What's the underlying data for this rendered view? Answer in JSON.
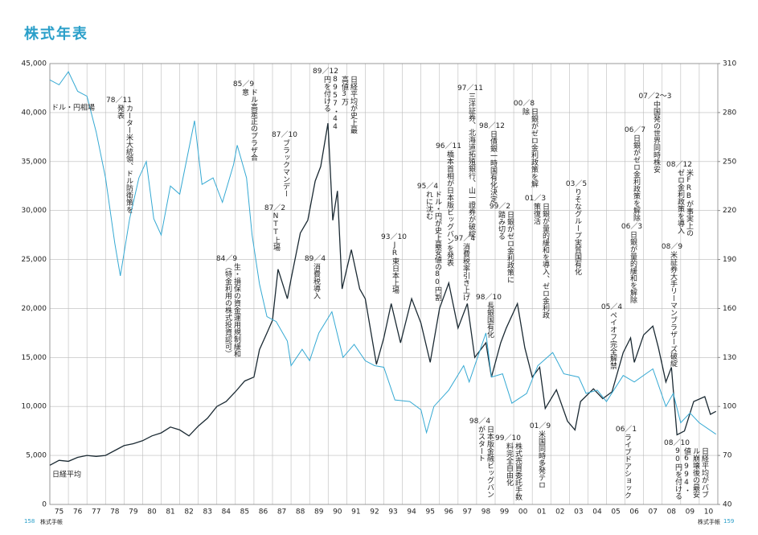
{
  "chart_data": {
    "type": "line",
    "title": "株式年表",
    "xlim": [
      1975,
      2011
    ],
    "xticks": [
      {
        "value": 1975,
        "label": "75"
      },
      {
        "value": 1976,
        "label": "76"
      },
      {
        "value": 1977,
        "label": "77"
      },
      {
        "value": 1978,
        "label": "78"
      },
      {
        "value": 1979,
        "label": "79"
      },
      {
        "value": 1980,
        "label": "80"
      },
      {
        "value": 1981,
        "label": "81"
      },
      {
        "value": 1982,
        "label": "82"
      },
      {
        "value": 1983,
        "label": "83"
      },
      {
        "value": 1984,
        "label": "84"
      },
      {
        "value": 1985,
        "label": "85"
      },
      {
        "value": 1986,
        "label": "86"
      },
      {
        "value": 1987,
        "label": "87"
      },
      {
        "value": 1988,
        "label": "88"
      },
      {
        "value": 1989,
        "label": "89"
      },
      {
        "value": 1990,
        "label": "90"
      },
      {
        "value": 1991,
        "label": "91"
      },
      {
        "value": 1992,
        "label": "92"
      },
      {
        "value": 1993,
        "label": "93"
      },
      {
        "value": 1994,
        "label": "94"
      },
      {
        "value": 1995,
        "label": "95"
      },
      {
        "value": 1996,
        "label": "96"
      },
      {
        "value": 1997,
        "label": "97"
      },
      {
        "value": 1998,
        "label": "98"
      },
      {
        "value": 1999,
        "label": "99"
      },
      {
        "value": 2000,
        "label": "00"
      },
      {
        "value": 2001,
        "label": "01"
      },
      {
        "value": 2002,
        "label": "02"
      },
      {
        "value": 2003,
        "label": "03"
      },
      {
        "value": 2004,
        "label": "04"
      },
      {
        "value": 2005,
        "label": "05"
      },
      {
        "value": 2006,
        "label": "06"
      },
      {
        "value": 2007,
        "label": "07"
      },
      {
        "value": 2008,
        "label": "08"
      },
      {
        "value": 2009,
        "label": "09"
      },
      {
        "value": 2010,
        "label": "10"
      }
    ],
    "ylim": [
      0,
      45000
    ],
    "yticks": [
      0,
      {
        "value": 5000,
        "label": "5,000"
      },
      {
        "value": 10000,
        "label": "10,000"
      },
      {
        "value": 15000,
        "label": "15,000"
      },
      {
        "value": 20000,
        "label": "20,000"
      },
      {
        "value": 25000,
        "label": "25,000"
      },
      {
        "value": 30000,
        "label": "30,000"
      },
      {
        "value": 35000,
        "label": "35,000"
      },
      {
        "value": 40000,
        "label": "40,000"
      },
      {
        "value": 45000,
        "label": "45,000"
      }
    ],
    "y2lim": [
      40,
      310
    ],
    "y2ticks": [
      40,
      70,
      100,
      130,
      160,
      190,
      220,
      250,
      280,
      310
    ],
    "grid": true,
    "series": [
      {
        "name": "日経平均",
        "color": "#1b2a33",
        "axis": "y",
        "x": [
          1975,
          1975.5,
          1976,
          1976.5,
          1977,
          1977.5,
          1978,
          1978.5,
          1979,
          1979.5,
          1980,
          1980.5,
          1981,
          1981.5,
          1982,
          1982.5,
          1983,
          1983.5,
          1984,
          1984.5,
          1985,
          1985.5,
          1986,
          1986.3,
          1986.7,
          1987,
          1987.3,
          1987.8,
          1988,
          1988.5,
          1988.9,
          1989.3,
          1989.6,
          1989.99,
          1990.25,
          1990.5,
          1990.75,
          1991,
          1991.25,
          1991.7,
          1992,
          1992.6,
          1993,
          1993.4,
          1993.9,
          1994.5,
          1995,
          1995.5,
          1996,
          1996.5,
          1997,
          1997.5,
          1997.9,
          1998.5,
          1998.8,
          1999.3,
          1999.6,
          2000.2,
          2000.6,
          2001,
          2001.4,
          2001.7,
          2002.3,
          2002.9,
          2003.3,
          2003.6,
          2004.3,
          2004.8,
          2005.3,
          2005.9,
          2006.3,
          2006.5,
          2007,
          2007.5,
          2007.8,
          2008.2,
          2008.5,
          2008.8,
          2009.2,
          2009.7,
          2010.3,
          2010.6,
          2010.9
        ],
        "values": [
          4000,
          4500,
          4400,
          4800,
          5000,
          4900,
          5000,
          5500,
          6000,
          6200,
          6500,
          7000,
          7300,
          7900,
          7600,
          7000,
          8000,
          8800,
          10000,
          10500,
          11500,
          12600,
          13000,
          15800,
          17500,
          18800,
          24000,
          21000,
          23000,
          27700,
          29000,
          33000,
          34500,
          38915,
          29000,
          32000,
          22000,
          24000,
          26000,
          22000,
          21000,
          14300,
          17000,
          20500,
          16500,
          21000,
          18500,
          14500,
          20000,
          22600,
          18000,
          20500,
          15000,
          16500,
          13000,
          16500,
          18000,
          20500,
          16000,
          13000,
          14000,
          9800,
          11700,
          8500,
          7600,
          10500,
          11800,
          10800,
          11500,
          15500,
          17000,
          14500,
          17300,
          18200,
          16000,
          12500,
          14000,
          7100,
          7500,
          10500,
          11000,
          9200,
          9500
        ]
      },
      {
        "name": "ドル・円相場",
        "color": "#35a9d3",
        "axis": "y2",
        "x": [
          1975,
          1975.5,
          1976,
          1976.5,
          1977,
          1977.5,
          1978,
          1978.5,
          1978.8,
          1979.3,
          1979.8,
          1980.2,
          1980.6,
          1981,
          1981.5,
          1982,
          1982.8,
          1983.2,
          1983.8,
          1984.3,
          1984.9,
          1985.1,
          1985.6,
          1985.9,
          1986.3,
          1986.7,
          1987.2,
          1987.8,
          1988,
          1988.6,
          1989,
          1989.5,
          1990.2,
          1990.8,
          1991.4,
          1992,
          1992.5,
          1993,
          1993.6,
          1994.4,
          1995,
          1995.3,
          1995.7,
          1996.5,
          1997.3,
          1997.6,
          1998.5,
          1998.8,
          1999.4,
          1999.9,
          2000.7,
          2001.3,
          2002.1,
          2002.7,
          2003.5,
          2003.9,
          2004.5,
          2005,
          2005.9,
          2006.5,
          2007.5,
          2008.2,
          2008.6,
          2009,
          2009.5,
          2010,
          2010.9
        ],
        "values": [
          300,
          297,
          305,
          293,
          290,
          268,
          240,
          200,
          180,
          215,
          240,
          250,
          215,
          205,
          235,
          230,
          275,
          236,
          240,
          225,
          248,
          260,
          240,
          205,
          175,
          155,
          152,
          140,
          125,
          135,
          128,
          145,
          158,
          130,
          138,
          128,
          125,
          124,
          104,
          103,
          98,
          84,
          100,
          110,
          125,
          115,
          145,
          118,
          120,
          102,
          108,
          125,
          133,
          120,
          118,
          108,
          110,
          103,
          119,
          115,
          123,
          100,
          108,
          90,
          96,
          90,
          83
        ]
      }
    ],
    "annotations": [
      {
        "date": "78／11",
        "text": "カーター米大統領、ドル防衛策を発表"
      },
      {
        "date": "84／9",
        "text": "生・損保の資金運用規制緩和（特金利用の株式投資認可）"
      },
      {
        "date": "85／9",
        "text": "ドル高是正のプラザ合意"
      },
      {
        "date": "87／2",
        "text": "NTT上場"
      },
      {
        "date": "87／10",
        "text": "ブラックマンデー"
      },
      {
        "date": "89／4",
        "text": "消費税導入"
      },
      {
        "date": "89／12",
        "text": "日経平均が史上最高値3万8957・44円を付ける"
      },
      {
        "date": "93／10",
        "text": "JR東日本上場"
      },
      {
        "date": "95／4",
        "text": "ドル・円が史上最安値の80円割れに沈む"
      },
      {
        "date": "96／11",
        "text": "橋本首相が日本版ビッグバンを発表"
      },
      {
        "date": "97／11",
        "text": "三洋証券、北海道拓殖銀行、山一證券が破綻"
      },
      {
        "date": "97／4",
        "text": "消費税率引き上げ"
      },
      {
        "date": "98／12",
        "text": "日債銀一時国有化決定"
      },
      {
        "date": "98／10",
        "text": "長銀国有化"
      },
      {
        "date": "99／2",
        "text": "日銀がゼロ金利政策に踏み切る"
      },
      {
        "date": "00／8",
        "text": "日銀がゼロ金利政策を解除"
      },
      {
        "date": "01／3",
        "text": "日銀が量的緩和を導入、ゼロ金利政策復活"
      },
      {
        "date": "03／5",
        "text": "りそなグループ実質国有化"
      },
      {
        "date": "05／4",
        "text": "ペイオフ完全解禁"
      },
      {
        "date": "06／7",
        "text": "日銀がゼロ金利政策を解除"
      },
      {
        "date": "06／3",
        "text": "日銀が量的緩和を解除"
      },
      {
        "date": "07／2〜3",
        "text": "中国発の世界同時株安"
      },
      {
        "date": "08／12",
        "text": "米FRBが事実上のゼロ金利政策を導入"
      },
      {
        "date": "08／9",
        "text": "米証券大手リーマンブラザーズ破綻"
      },
      {
        "date": "98／4",
        "text": "日本版金融ビッグバンがスタート"
      },
      {
        "date": "99／10",
        "text": "株式売買委託手数料完全自由化"
      },
      {
        "date": "01／9",
        "text": "米国同時多発テロ"
      },
      {
        "date": "06／1",
        "text": "ライブドアショック"
      },
      {
        "date": "08／10",
        "text": "日経平均がバブル崩壊後の最安値6994・90円を付ける"
      }
    ]
  },
  "footer": {
    "left_page": "158",
    "left_label": "株式手帳",
    "right_label": "株式手帳",
    "right_page": "159"
  }
}
